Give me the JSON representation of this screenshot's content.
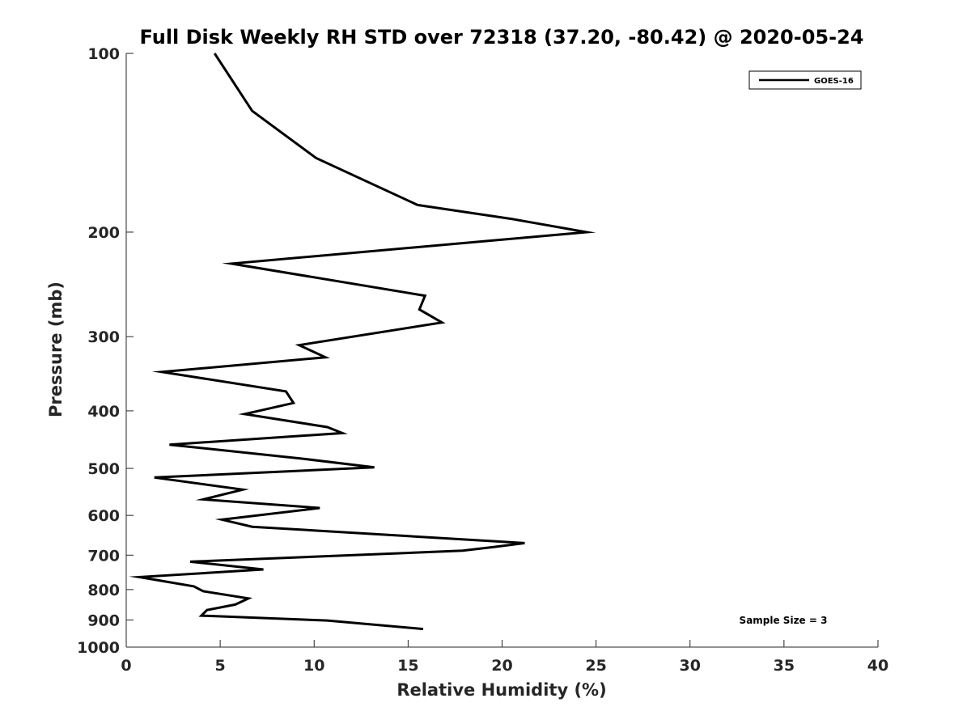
{
  "chart_data": {
    "type": "line",
    "title": "Full Disk Weekly RH STD over 72318 (37.20, -80.42) @ 2020-05-24",
    "xlabel": "Relative Humidity (%)",
    "ylabel": "Pressure (mb)",
    "xlim": [
      0,
      40
    ],
    "ylim": [
      100,
      1000
    ],
    "y_scale": "log",
    "y_reversed": true,
    "x_ticks": [
      0,
      5,
      10,
      15,
      20,
      25,
      30,
      35,
      40
    ],
    "y_ticks": [
      100,
      200,
      300,
      400,
      500,
      600,
      700,
      800,
      900,
      1000
    ],
    "grid": false,
    "legend_position": "top-right",
    "annotation": "Sample Size = 3",
    "series": [
      {
        "name": "GOES-16",
        "color": "#000000",
        "points": [
          [
            4.7,
            100
          ],
          [
            6.7,
            125
          ],
          [
            10.1,
            150
          ],
          [
            15.5,
            180
          ],
          [
            20.5,
            190
          ],
          [
            24.5,
            200
          ],
          [
            5.6,
            226
          ],
          [
            15.9,
            256
          ],
          [
            15.6,
            270
          ],
          [
            16.8,
            284
          ],
          [
            9.2,
            310
          ],
          [
            10.6,
            325
          ],
          [
            1.9,
            344
          ],
          [
            8.5,
            371
          ],
          [
            8.9,
            388
          ],
          [
            6.3,
            405
          ],
          [
            10.7,
            426
          ],
          [
            11.5,
            436
          ],
          [
            2.3,
            456
          ],
          [
            9.5,
            482
          ],
          [
            13.2,
            498
          ],
          [
            1.5,
            518
          ],
          [
            6.2,
            543
          ],
          [
            4.1,
            564
          ],
          [
            10.3,
            583
          ],
          [
            5.1,
            610
          ],
          [
            6.7,
            627
          ],
          [
            21.2,
            668
          ],
          [
            19.6,
            678
          ],
          [
            17.9,
            688
          ],
          [
            3.4,
            718
          ],
          [
            7.3,
            740
          ],
          [
            0.7,
            762
          ],
          [
            3.6,
            790
          ],
          [
            4.1,
            805
          ],
          [
            6.5,
            828
          ],
          [
            5.8,
            848
          ],
          [
            4.3,
            866
          ],
          [
            4.0,
            885
          ],
          [
            10.7,
            902
          ],
          [
            15.8,
            932
          ]
        ]
      }
    ]
  }
}
